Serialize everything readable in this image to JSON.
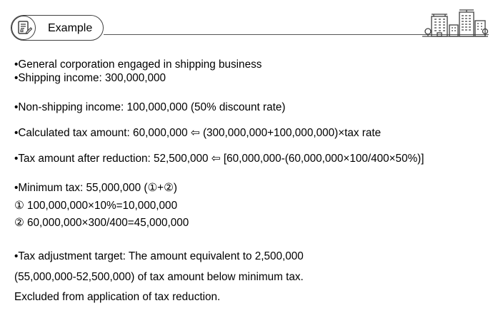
{
  "header": {
    "title": "Example"
  },
  "lines": [
    "•General corporation engaged in shipping business",
    "•Shipping income: 300,000,000",
    "•Non-shipping income: 100,000,000 (50% discount rate)",
    "•Calculated tax amount: 60,000,000 ⇦ (300,000,000+100,000,000)×tax rate",
    "•Tax amount after reduction: 52,500,000 ⇦ [60,000,000-(60,000,000×100/400×50%)]",
    "•Minimum tax: 55,000,000 (①+②)",
    "  ① 100,000,000×10%=10,000,000",
    "  ② 60,000,000×300/400=45,000,000",
    "•Tax adjustment target: The amount equivalent to 2,500,000",
    "(55,000,000-52,500,000) of tax amount below minimum tax.",
    "Excluded from application of tax reduction."
  ],
  "icons": {
    "badge": "document-edit-icon",
    "decoration": "city-buildings-icon"
  },
  "colors": {
    "text": "#000000",
    "outline": "#404040"
  }
}
